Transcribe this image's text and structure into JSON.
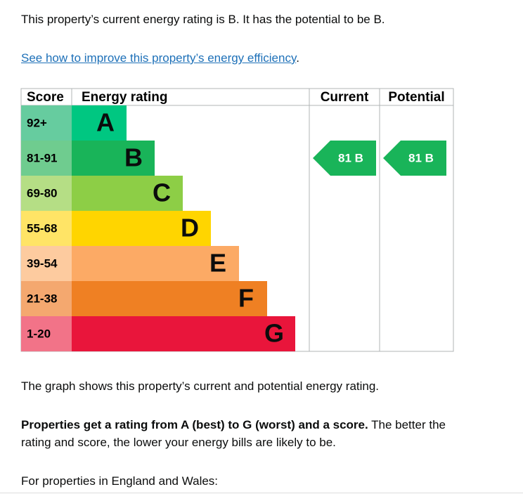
{
  "summary": "This property’s current energy rating is B. It has the potential to be B.",
  "link": "See how to improve this property’s energy efficiency",
  "link_suffix": ".",
  "table": {
    "headers": {
      "score": "Score",
      "rating": "Energy rating",
      "current": "Current",
      "potential": "Potential"
    },
    "rows": [
      {
        "score": "92+",
        "band": "A"
      },
      {
        "score": "81-91",
        "band": "B"
      },
      {
        "score": "69-80",
        "band": "C"
      },
      {
        "score": "55-68",
        "band": "D"
      },
      {
        "score": "39-54",
        "band": "E"
      },
      {
        "score": "21-38",
        "band": "F"
      },
      {
        "score": "1-20",
        "band": "G"
      }
    ],
    "current": "81 B",
    "potential": "81 B"
  },
  "paragraphs": [
    {
      "text": "The graph shows this property’s current and potential energy rating."
    },
    {
      "bold_text": "Properties get a rating from A (best) to G (worst) and a score.",
      "text": " The better the rating and score, the lower your energy bills are likely to be."
    },
    {
      "text": "For properties in England and Wales:"
    }
  ]
}
